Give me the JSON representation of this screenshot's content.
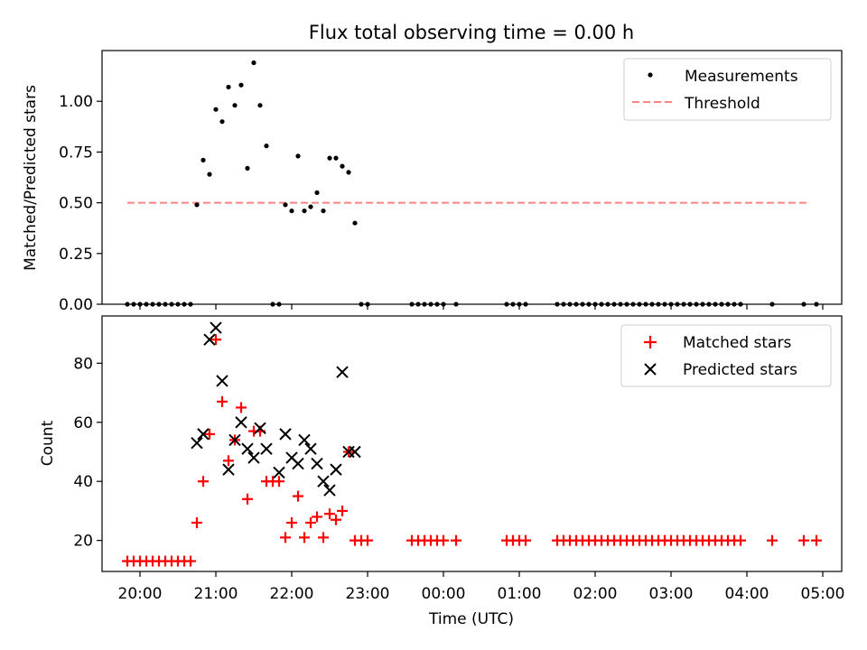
{
  "title": "Flux total observing time = 0.00 h",
  "chart_data": [
    {
      "type": "scatter",
      "ylabel": "Matched/Predicted stars",
      "ylim": [
        0,
        1.25
      ],
      "yticks": [
        0.0,
        0.25,
        0.5,
        0.75,
        1.0
      ],
      "ytick_labels": [
        "0.00",
        "0.25",
        "0.50",
        "0.75",
        "1.00"
      ],
      "legend_position": "top-right",
      "legend": [
        "Measurements",
        "Threshold"
      ],
      "threshold": {
        "name": "Threshold",
        "y": 0.5,
        "x_start": "19:50",
        "x_end": "04:50",
        "color": "#ff8080",
        "style": "dashed"
      },
      "series": [
        {
          "name": "Measurements",
          "color": "#000000",
          "marker": "dot",
          "x": [
            "19:50",
            "19:55",
            "20:00",
            "20:05",
            "20:10",
            "20:15",
            "20:20",
            "20:25",
            "20:30",
            "20:35",
            "20:40",
            "20:45",
            "20:50",
            "20:55",
            "21:00",
            "21:05",
            "21:10",
            "21:15",
            "21:20",
            "21:25",
            "21:30",
            "21:35",
            "21:40",
            "21:45",
            "21:50",
            "21:55",
            "22:00",
            "22:05",
            "22:10",
            "22:15",
            "22:20",
            "22:25",
            "22:30",
            "22:35",
            "22:40",
            "22:45",
            "22:50",
            "22:55",
            "23:00",
            "23:35",
            "23:40",
            "23:45",
            "23:50",
            "23:55",
            "00:00",
            "00:10",
            "00:50",
            "00:55",
            "01:00",
            "01:05",
            "01:30",
            "01:35",
            "01:40",
            "01:45",
            "01:50",
            "01:55",
            "02:00",
            "02:05",
            "02:10",
            "02:15",
            "02:20",
            "02:25",
            "02:30",
            "02:35",
            "02:40",
            "02:45",
            "02:50",
            "02:55",
            "03:00",
            "03:05",
            "03:10",
            "03:15",
            "03:20",
            "03:25",
            "03:30",
            "03:35",
            "03:40",
            "03:45",
            "03:50",
            "03:55",
            "04:20",
            "04:45",
            "04:55"
          ],
          "y": [
            0,
            0,
            0,
            0,
            0,
            0,
            0,
            0,
            0,
            0,
            0,
            0.49,
            0.71,
            0.64,
            0.96,
            0.9,
            1.07,
            0.98,
            1.08,
            0.67,
            1.19,
            0.98,
            0.78,
            0,
            0,
            0.49,
            0.46,
            0.73,
            0.46,
            0.48,
            0.55,
            0.46,
            0.72,
            0.72,
            0.68,
            0.65,
            0.4,
            0,
            0,
            0,
            0,
            0,
            0,
            0,
            0,
            0,
            0,
            0,
            0,
            0,
            0,
            0,
            0,
            0,
            0,
            0,
            0,
            0,
            0,
            0,
            0,
            0,
            0,
            0,
            0,
            0,
            0,
            0,
            0,
            0,
            0,
            0,
            0,
            0,
            0,
            0,
            0,
            0,
            0,
            0,
            0,
            0,
            0
          ]
        }
      ]
    },
    {
      "type": "scatter",
      "xlabel": "Time (UTC)",
      "ylabel": "Count",
      "ylim": [
        9.5,
        96
      ],
      "yticks": [
        20,
        40,
        60,
        80
      ],
      "ytick_labels": [
        "20",
        "40",
        "60",
        "80"
      ],
      "xlim": [
        "19:30",
        "05:15"
      ],
      "xticks": [
        "20:00",
        "21:00",
        "22:00",
        "23:00",
        "00:00",
        "01:00",
        "02:00",
        "03:00",
        "04:00",
        "05:00"
      ],
      "legend_position": "top-right",
      "legend": [
        "Matched stars",
        "Predicted stars"
      ],
      "series": [
        {
          "name": "Matched stars",
          "color": "#ff0000",
          "marker": "plus",
          "x": [
            "19:50",
            "19:55",
            "20:00",
            "20:05",
            "20:10",
            "20:15",
            "20:20",
            "20:25",
            "20:30",
            "20:35",
            "20:40",
            "20:45",
            "20:50",
            "20:55",
            "21:00",
            "21:05",
            "21:10",
            "21:15",
            "21:20",
            "21:25",
            "21:30",
            "21:35",
            "21:40",
            "21:45",
            "21:50",
            "21:55",
            "22:00",
            "22:05",
            "22:10",
            "22:15",
            "22:20",
            "22:25",
            "22:30",
            "22:35",
            "22:40",
            "22:45",
            "22:50",
            "22:55",
            "23:00",
            "23:35",
            "23:40",
            "23:45",
            "23:50",
            "23:55",
            "00:00",
            "00:10",
            "00:50",
            "00:55",
            "01:00",
            "01:05",
            "01:30",
            "01:35",
            "01:40",
            "01:45",
            "01:50",
            "01:55",
            "02:00",
            "02:05",
            "02:10",
            "02:15",
            "02:20",
            "02:25",
            "02:30",
            "02:35",
            "02:40",
            "02:45",
            "02:50",
            "02:55",
            "03:00",
            "03:05",
            "03:10",
            "03:15",
            "03:20",
            "03:25",
            "03:30",
            "03:35",
            "03:40",
            "03:45",
            "03:50",
            "03:55",
            "04:20",
            "04:45",
            "04:55"
          ],
          "y": [
            13,
            13,
            13,
            13,
            13,
            13,
            13,
            13,
            13,
            13,
            13,
            26,
            40,
            56,
            88,
            67,
            47,
            54,
            65,
            34,
            57,
            57,
            40,
            40,
            40,
            21,
            26,
            35,
            21,
            26,
            28,
            21,
            29,
            27,
            30,
            50,
            20,
            20,
            20,
            20,
            20,
            20,
            20,
            20,
            20,
            20,
            20,
            20,
            20,
            20,
            20,
            20,
            20,
            20,
            20,
            20,
            20,
            20,
            20,
            20,
            20,
            20,
            20,
            20,
            20,
            20,
            20,
            20,
            20,
            20,
            20,
            20,
            20,
            20,
            20,
            20,
            20,
            20,
            20,
            20,
            20,
            20,
            20
          ]
        },
        {
          "name": "Predicted stars",
          "color": "#000000",
          "marker": "x",
          "x": [
            "20:45",
            "20:50",
            "20:55",
            "21:00",
            "21:05",
            "21:10",
            "21:15",
            "21:20",
            "21:25",
            "21:30",
            "21:35",
            "21:40",
            "21:50",
            "21:55",
            "22:00",
            "22:05",
            "22:10",
            "22:15",
            "22:20",
            "22:25",
            "22:30",
            "22:35",
            "22:40",
            "22:45",
            "22:50"
          ],
          "y": [
            53,
            56,
            88,
            92,
            74,
            44,
            54,
            60,
            51,
            48,
            58,
            51,
            43,
            56,
            48,
            46,
            54,
            51,
            46,
            40,
            37,
            44,
            77,
            50,
            50
          ]
        }
      ]
    }
  ]
}
